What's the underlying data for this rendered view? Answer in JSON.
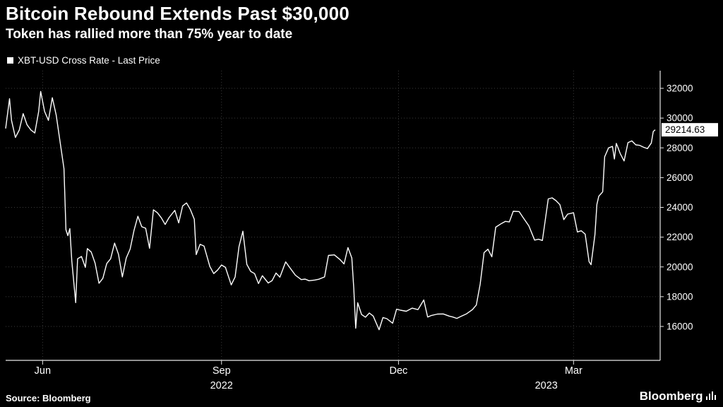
{
  "header": {
    "title": "Bitcoin Rebound Extends Past $30,000",
    "subtitle": "Token has rallied more than 75% year to date"
  },
  "legend": {
    "label": "XBT-USD Cross Rate - Last Price"
  },
  "footer": {
    "source": "Source: Bloomberg",
    "brand": "Bloomberg"
  },
  "last_price_label": "29214.63",
  "icons": {
    "legend_marker": "filled-square",
    "bloomberg_bars": "signal-bars"
  },
  "colors": {
    "background": "#000000",
    "line": "#ffffff",
    "grid": "#3b3b3b",
    "axis": "#e6e6e6",
    "text": "#ffffff",
    "flag_bg": "#ffffff",
    "flag_text": "#000000"
  },
  "chart_data": {
    "type": "line",
    "title": "Bitcoin Rebound Extends Past $30,000",
    "subtitle": "Token has rallied more than 75% year to date",
    "xlabel": "",
    "ylabel": "XBT-USD Cross Rate",
    "grid": true,
    "legend_position": "top-left",
    "ylim": [
      16000,
      32000
    ],
    "y_ticks": [
      32000,
      30000,
      28000,
      26000,
      24000,
      22000,
      20000,
      18000,
      16000
    ],
    "x_range": [
      "2022-05-13",
      "2023-04-12"
    ],
    "x_ticks": [
      {
        "label": "Jun",
        "date": "2022-06-01"
      },
      {
        "label": "Sep",
        "date": "2022-09-01"
      },
      {
        "label": "Dec",
        "date": "2022-12-01"
      },
      {
        "label": "Mar",
        "date": "2023-03-01"
      }
    ],
    "year_labels": [
      {
        "label": "2022",
        "date": "2022-09-01"
      },
      {
        "label": "2023",
        "date": "2023-02-15"
      }
    ],
    "last_price": 29214.63,
    "series": [
      {
        "name": "XBT-USD Cross Rate - Last Price",
        "points": [
          [
            "2022-05-13",
            29300
          ],
          [
            "2022-05-15",
            31300
          ],
          [
            "2022-05-16",
            29850
          ],
          [
            "2022-05-18",
            28700
          ],
          [
            "2022-05-20",
            29200
          ],
          [
            "2022-05-22",
            30300
          ],
          [
            "2022-05-24",
            29550
          ],
          [
            "2022-05-26",
            29200
          ],
          [
            "2022-05-28",
            29000
          ],
          [
            "2022-05-30",
            30450
          ],
          [
            "2022-05-31",
            31790
          ],
          [
            "2022-06-02",
            30450
          ],
          [
            "2022-06-04",
            29850
          ],
          [
            "2022-06-06",
            31370
          ],
          [
            "2022-06-08",
            30200
          ],
          [
            "2022-06-10",
            28400
          ],
          [
            "2022-06-12",
            26600
          ],
          [
            "2022-06-13",
            22500
          ],
          [
            "2022-06-14",
            22100
          ],
          [
            "2022-06-15",
            22570
          ],
          [
            "2022-06-16",
            20400
          ],
          [
            "2022-06-18",
            17600
          ],
          [
            "2022-06-19",
            20550
          ],
          [
            "2022-06-21",
            20700
          ],
          [
            "2022-06-23",
            19970
          ],
          [
            "2022-06-24",
            21230
          ],
          [
            "2022-06-26",
            21000
          ],
          [
            "2022-06-28",
            20250
          ],
          [
            "2022-06-30",
            18900
          ],
          [
            "2022-07-02",
            19240
          ],
          [
            "2022-07-04",
            20230
          ],
          [
            "2022-07-06",
            20550
          ],
          [
            "2022-07-08",
            21600
          ],
          [
            "2022-07-10",
            20850
          ],
          [
            "2022-07-12",
            19330
          ],
          [
            "2022-07-14",
            20600
          ],
          [
            "2022-07-16",
            21200
          ],
          [
            "2022-07-18",
            22450
          ],
          [
            "2022-07-20",
            23400
          ],
          [
            "2022-07-22",
            22700
          ],
          [
            "2022-07-24",
            22600
          ],
          [
            "2022-07-26",
            21250
          ],
          [
            "2022-07-28",
            23840
          ],
          [
            "2022-07-30",
            23640
          ],
          [
            "2022-08-01",
            23300
          ],
          [
            "2022-08-03",
            22850
          ],
          [
            "2022-08-05",
            23310
          ],
          [
            "2022-08-08",
            23800
          ],
          [
            "2022-08-10",
            22960
          ],
          [
            "2022-08-12",
            24100
          ],
          [
            "2022-08-14",
            24300
          ],
          [
            "2022-08-16",
            23850
          ],
          [
            "2022-08-18",
            23200
          ],
          [
            "2022-08-19",
            20830
          ],
          [
            "2022-08-21",
            21520
          ],
          [
            "2022-08-23",
            21400
          ],
          [
            "2022-08-26",
            20030
          ],
          [
            "2022-08-28",
            19550
          ],
          [
            "2022-08-30",
            19790
          ],
          [
            "2022-09-01",
            20130
          ],
          [
            "2022-09-03",
            19970
          ],
          [
            "2022-09-06",
            18790
          ],
          [
            "2022-09-08",
            19330
          ],
          [
            "2022-09-10",
            21360
          ],
          [
            "2022-09-12",
            22400
          ],
          [
            "2022-09-14",
            20170
          ],
          [
            "2022-09-16",
            19700
          ],
          [
            "2022-09-18",
            19550
          ],
          [
            "2022-09-20",
            18880
          ],
          [
            "2022-09-22",
            19410
          ],
          [
            "2022-09-25",
            18920
          ],
          [
            "2022-09-27",
            19080
          ],
          [
            "2022-09-29",
            19590
          ],
          [
            "2022-10-01",
            19310
          ],
          [
            "2022-10-04",
            20340
          ],
          [
            "2022-10-06",
            19970
          ],
          [
            "2022-10-09",
            19440
          ],
          [
            "2022-10-12",
            19150
          ],
          [
            "2022-10-14",
            19180
          ],
          [
            "2022-10-16",
            19070
          ],
          [
            "2022-10-19",
            19120
          ],
          [
            "2022-10-21",
            19170
          ],
          [
            "2022-10-24",
            19330
          ],
          [
            "2022-10-26",
            20770
          ],
          [
            "2022-10-29",
            20810
          ],
          [
            "2022-11-01",
            20480
          ],
          [
            "2022-11-03",
            20200
          ],
          [
            "2022-11-05",
            21300
          ],
          [
            "2022-11-07",
            20600
          ],
          [
            "2022-11-08",
            18540
          ],
          [
            "2022-11-09",
            15880
          ],
          [
            "2022-11-10",
            17590
          ],
          [
            "2022-11-12",
            16800
          ],
          [
            "2022-11-14",
            16620
          ],
          [
            "2022-11-16",
            16900
          ],
          [
            "2022-11-18",
            16700
          ],
          [
            "2022-11-21",
            15780
          ],
          [
            "2022-11-23",
            16600
          ],
          [
            "2022-11-25",
            16520
          ],
          [
            "2022-11-28",
            16220
          ],
          [
            "2022-11-30",
            17160
          ],
          [
            "2022-12-02",
            17090
          ],
          [
            "2022-12-05",
            17020
          ],
          [
            "2022-12-08",
            17230
          ],
          [
            "2022-12-11",
            17130
          ],
          [
            "2022-12-14",
            17780
          ],
          [
            "2022-12-16",
            16630
          ],
          [
            "2022-12-18",
            16740
          ],
          [
            "2022-12-21",
            16830
          ],
          [
            "2022-12-24",
            16840
          ],
          [
            "2022-12-27",
            16700
          ],
          [
            "2022-12-29",
            16630
          ],
          [
            "2022-12-31",
            16540
          ],
          [
            "2023-01-02",
            16670
          ],
          [
            "2023-01-05",
            16850
          ],
          [
            "2023-01-08",
            17130
          ],
          [
            "2023-01-10",
            17440
          ],
          [
            "2023-01-12",
            18850
          ],
          [
            "2023-01-14",
            20960
          ],
          [
            "2023-01-16",
            21190
          ],
          [
            "2023-01-18",
            20680
          ],
          [
            "2023-01-20",
            22670
          ],
          [
            "2023-01-23",
            22920
          ],
          [
            "2023-01-25",
            23060
          ],
          [
            "2023-01-27",
            23020
          ],
          [
            "2023-01-29",
            23740
          ],
          [
            "2023-02-01",
            23720
          ],
          [
            "2023-02-03",
            23330
          ],
          [
            "2023-02-06",
            22760
          ],
          [
            "2023-02-09",
            21800
          ],
          [
            "2023-02-11",
            21860
          ],
          [
            "2023-02-13",
            21780
          ],
          [
            "2023-02-16",
            24570
          ],
          [
            "2023-02-18",
            24640
          ],
          [
            "2023-02-20",
            24450
          ],
          [
            "2023-02-22",
            24180
          ],
          [
            "2023-02-24",
            23180
          ],
          [
            "2023-02-26",
            23550
          ],
          [
            "2023-03-01",
            23640
          ],
          [
            "2023-03-03",
            22350
          ],
          [
            "2023-03-05",
            22430
          ],
          [
            "2023-03-07",
            22200
          ],
          [
            "2023-03-09",
            20360
          ],
          [
            "2023-03-10",
            20150
          ],
          [
            "2023-03-12",
            22160
          ],
          [
            "2023-03-13",
            24200
          ],
          [
            "2023-03-14",
            24750
          ],
          [
            "2023-03-16",
            25050
          ],
          [
            "2023-03-17",
            27400
          ],
          [
            "2023-03-19",
            28000
          ],
          [
            "2023-03-21",
            28100
          ],
          [
            "2023-03-22",
            27250
          ],
          [
            "2023-03-23",
            28300
          ],
          [
            "2023-03-25",
            27620
          ],
          [
            "2023-03-27",
            27120
          ],
          [
            "2023-03-29",
            28350
          ],
          [
            "2023-03-31",
            28470
          ],
          [
            "2023-04-02",
            28200
          ],
          [
            "2023-04-04",
            28170
          ],
          [
            "2023-04-06",
            28040
          ],
          [
            "2023-04-08",
            27950
          ],
          [
            "2023-04-10",
            28330
          ],
          [
            "2023-04-11",
            29100
          ],
          [
            "2023-04-12",
            29214.63
          ]
        ]
      }
    ]
  }
}
